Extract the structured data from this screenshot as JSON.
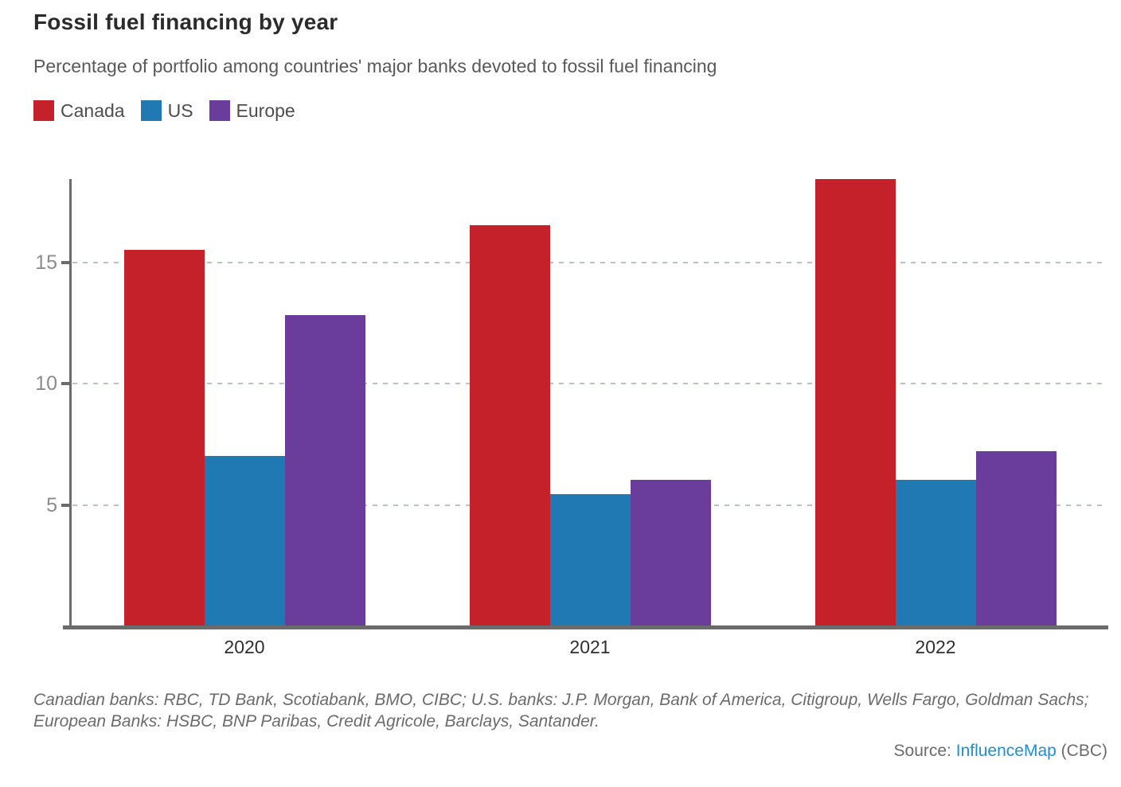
{
  "header": {
    "title": "Fossil fuel financing by year",
    "subtitle": "Percentage of portfolio among countries' major banks devoted to fossil fuel financing"
  },
  "chart_data": {
    "type": "bar",
    "categories": [
      "2020",
      "2021",
      "2022"
    ],
    "series": [
      {
        "name": "Canada",
        "color": "#c4212a",
        "values": [
          15.5,
          16.5,
          18.4
        ]
      },
      {
        "name": "US",
        "color": "#2179b4",
        "values": [
          7.0,
          5.4,
          6.0
        ]
      },
      {
        "name": "Europe",
        "color": "#6a3d9c",
        "values": [
          12.8,
          6.0,
          7.2
        ]
      }
    ],
    "title": "Fossil fuel financing by year",
    "xlabel": "",
    "ylabel": "",
    "yticks": [
      5,
      10,
      15
    ],
    "ylim": [
      0,
      18.4
    ],
    "grid": "horizontal-dashed",
    "legend_position": "top-left"
  },
  "footnote": "Canadian banks: RBC, TD Bank, Scotiabank, BMO, CIBC; U.S. banks: J.P. Morgan, Bank of America, Citigroup, Wells Fargo, Goldman Sachs; European Banks: HSBC, BNP Paribas, Credit Agricole, Barclays, Santander.",
  "source": {
    "label": "Source: ",
    "link_text": "InfluenceMap",
    "suffix": " (CBC)"
  },
  "colors": {
    "axis": "#6b6b6b",
    "gridline": "#b8c2ca",
    "y_tick_label": "#8c8c8c",
    "x_label": "#2f2f2f",
    "link": "#1f8fd4"
  }
}
